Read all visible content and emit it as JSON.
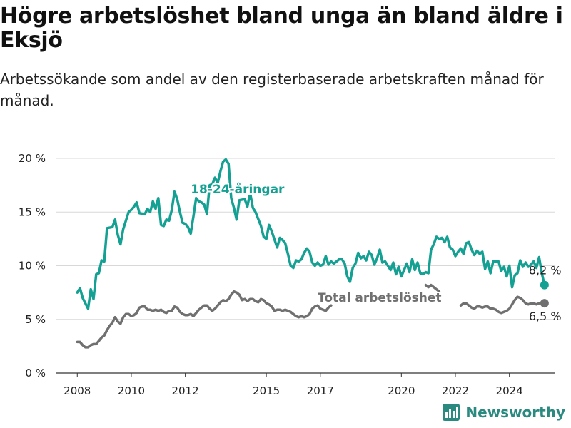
{
  "title": "Högre arbetslöshet bland unga än bland äldre i Eksjö",
  "subtitle": "Arbetssökande som andel av den registerbaserade arbetskraften månad för månad.",
  "brand": {
    "name": "Newsworthy",
    "color": "#2a8a80"
  },
  "chart_data": {
    "type": "line",
    "xlabel": "",
    "ylabel": "",
    "ylim": [
      0,
      20
    ],
    "y_ticks": [
      0,
      5,
      10,
      15,
      20
    ],
    "y_tick_labels": [
      "0 %",
      "5 %",
      "10 %",
      "15 %",
      "20 %"
    ],
    "x_ticks": [
      2008,
      2010,
      2012,
      2015,
      2017,
      2020,
      2022,
      2024
    ],
    "x_tick_labels": [
      "2008",
      "2010",
      "2012",
      "2015",
      "2017",
      "2020",
      "2022",
      "2024"
    ],
    "xlim": [
      2007.2,
      2025.7
    ],
    "grid": "horizontal",
    "series": [
      {
        "name": "18-24-åringar",
        "color": "#14a092",
        "end_label": "8,2 %",
        "end_value": 8.2,
        "points": [
          [
            2008.0,
            7.5
          ],
          [
            2008.1,
            7.9
          ],
          [
            2008.2,
            7.0
          ],
          [
            2008.4,
            6.0
          ],
          [
            2008.5,
            7.8
          ],
          [
            2008.6,
            6.9
          ],
          [
            2008.7,
            9.2
          ],
          [
            2008.8,
            9.3
          ],
          [
            2008.9,
            10.5
          ],
          [
            2009.0,
            10.4
          ],
          [
            2009.1,
            13.5
          ],
          [
            2009.3,
            13.6
          ],
          [
            2009.4,
            14.3
          ],
          [
            2009.5,
            12.9
          ],
          [
            2009.6,
            12.0
          ],
          [
            2009.7,
            13.4
          ],
          [
            2009.9,
            15.0
          ],
          [
            2010.0,
            15.2
          ],
          [
            2010.1,
            15.5
          ],
          [
            2010.2,
            15.9
          ],
          [
            2010.3,
            14.9
          ],
          [
            2010.5,
            14.8
          ],
          [
            2010.6,
            15.3
          ],
          [
            2010.7,
            15.0
          ],
          [
            2010.8,
            16.0
          ],
          [
            2010.9,
            15.3
          ],
          [
            2011.0,
            16.3
          ],
          [
            2011.1,
            13.8
          ],
          [
            2011.2,
            13.7
          ],
          [
            2011.3,
            14.3
          ],
          [
            2011.4,
            14.2
          ],
          [
            2011.5,
            15.2
          ],
          [
            2011.6,
            16.9
          ],
          [
            2011.7,
            16.2
          ],
          [
            2011.8,
            15.0
          ],
          [
            2011.9,
            14.0
          ],
          [
            2012.0,
            13.9
          ],
          [
            2012.1,
            13.6
          ],
          [
            2012.2,
            13.0
          ],
          [
            2012.3,
            14.6
          ],
          [
            2012.4,
            16.3
          ],
          [
            2012.5,
            16.0
          ],
          [
            2012.6,
            15.9
          ],
          [
            2012.7,
            15.7
          ],
          [
            2012.8,
            14.8
          ],
          [
            2012.9,
            17.5
          ],
          [
            2013.0,
            17.6
          ],
          [
            2013.1,
            18.2
          ],
          [
            2013.2,
            17.7
          ],
          [
            2013.3,
            18.8
          ],
          [
            2013.4,
            19.7
          ],
          [
            2013.5,
            19.9
          ],
          [
            2013.6,
            19.5
          ],
          [
            2013.7,
            16.3
          ],
          [
            2013.8,
            15.4
          ],
          [
            2013.9,
            14.3
          ],
          [
            2014.0,
            16.1
          ],
          [
            2014.2,
            16.2
          ],
          [
            2014.3,
            15.5
          ],
          [
            2014.4,
            16.8
          ],
          [
            2014.5,
            15.4
          ],
          [
            2014.6,
            15.0
          ],
          [
            2014.8,
            13.7
          ],
          [
            2014.9,
            12.7
          ],
          [
            2015.0,
            12.5
          ],
          [
            2015.1,
            13.8
          ],
          [
            2015.2,
            13.2
          ],
          [
            2015.4,
            11.7
          ],
          [
            2015.5,
            12.6
          ],
          [
            2015.6,
            12.4
          ],
          [
            2015.7,
            12.1
          ],
          [
            2015.8,
            11.1
          ],
          [
            2015.9,
            10.0
          ],
          [
            2016.0,
            9.8
          ],
          [
            2016.1,
            10.5
          ],
          [
            2016.2,
            10.4
          ],
          [
            2016.3,
            10.6
          ],
          [
            2016.4,
            11.2
          ],
          [
            2016.5,
            11.6
          ],
          [
            2016.6,
            11.3
          ],
          [
            2016.7,
            10.3
          ],
          [
            2016.8,
            10.0
          ],
          [
            2016.9,
            10.3
          ],
          [
            2017.0,
            10.0
          ],
          [
            2017.1,
            10.1
          ],
          [
            2017.2,
            10.9
          ],
          [
            2017.3,
            10.1
          ],
          [
            2017.4,
            10.4
          ],
          [
            2017.5,
            10.2
          ],
          [
            2017.7,
            10.6
          ],
          [
            2017.8,
            10.6
          ],
          [
            2017.9,
            10.2
          ],
          [
            2018.0,
            9.0
          ],
          [
            2018.1,
            8.5
          ],
          [
            2018.2,
            9.8
          ],
          [
            2018.3,
            10.2
          ],
          [
            2018.4,
            11.2
          ],
          [
            2018.5,
            10.7
          ],
          [
            2018.6,
            10.9
          ],
          [
            2018.7,
            10.5
          ],
          [
            2018.8,
            11.3
          ],
          [
            2018.9,
            11.0
          ],
          [
            2019.0,
            10.1
          ],
          [
            2019.1,
            10.7
          ],
          [
            2019.2,
            11.5
          ],
          [
            2019.3,
            10.3
          ],
          [
            2019.4,
            10.4
          ],
          [
            2019.5,
            10.0
          ],
          [
            2019.6,
            9.6
          ],
          [
            2019.7,
            10.3
          ],
          [
            2019.8,
            9.2
          ],
          [
            2019.9,
            9.9
          ],
          [
            2020.0,
            9.0
          ],
          [
            2020.1,
            9.6
          ],
          [
            2020.2,
            10.2
          ],
          [
            2020.3,
            9.4
          ],
          [
            2020.4,
            10.6
          ],
          [
            2020.5,
            9.6
          ],
          [
            2020.6,
            10.3
          ],
          [
            2020.7,
            9.3
          ],
          [
            2020.8,
            9.2
          ],
          [
            2020.9,
            9.4
          ],
          [
            2021.0,
            9.3
          ],
          [
            2021.1,
            11.5
          ],
          [
            2021.2,
            12.0
          ],
          [
            2021.3,
            12.7
          ],
          [
            2021.4,
            12.5
          ],
          [
            2021.5,
            12.6
          ],
          [
            2021.6,
            12.2
          ],
          [
            2021.7,
            12.7
          ],
          [
            2021.8,
            11.7
          ],
          [
            2021.9,
            11.5
          ],
          [
            2022.0,
            10.9
          ],
          [
            2022.1,
            11.3
          ],
          [
            2022.2,
            11.6
          ],
          [
            2022.3,
            11.1
          ],
          [
            2022.4,
            12.1
          ],
          [
            2022.5,
            12.2
          ],
          [
            2022.6,
            11.5
          ],
          [
            2022.7,
            11.0
          ],
          [
            2022.8,
            11.4
          ],
          [
            2022.9,
            11.1
          ],
          [
            2023.0,
            11.3
          ],
          [
            2023.1,
            9.7
          ],
          [
            2023.2,
            10.4
          ],
          [
            2023.3,
            9.3
          ],
          [
            2023.4,
            10.4
          ],
          [
            2023.5,
            10.4
          ],
          [
            2023.6,
            10.4
          ],
          [
            2023.7,
            9.5
          ],
          [
            2023.8,
            9.9
          ],
          [
            2023.9,
            9.0
          ],
          [
            2024.0,
            10.0
          ],
          [
            2024.1,
            8.0
          ],
          [
            2024.2,
            9.1
          ],
          [
            2024.3,
            9.3
          ],
          [
            2024.4,
            10.5
          ],
          [
            2024.5,
            9.9
          ],
          [
            2024.6,
            10.3
          ],
          [
            2024.7,
            9.9
          ],
          [
            2024.8,
            10.1
          ],
          [
            2024.9,
            10.4
          ],
          [
            2025.0,
            9.8
          ],
          [
            2025.1,
            10.8
          ],
          [
            2025.2,
            9.3
          ],
          [
            2025.3,
            8.2
          ]
        ]
      },
      {
        "name": "Total arbetslöshet",
        "color": "#707070",
        "end_label": "6,5 %",
        "end_value": 6.5,
        "points": [
          [
            2008.0,
            2.9
          ],
          [
            2008.1,
            2.9
          ],
          [
            2008.2,
            2.6
          ],
          [
            2008.3,
            2.4
          ],
          [
            2008.4,
            2.4
          ],
          [
            2008.5,
            2.6
          ],
          [
            2008.6,
            2.7
          ],
          [
            2008.7,
            2.7
          ],
          [
            2008.8,
            3.0
          ],
          [
            2008.9,
            3.3
          ],
          [
            2009.0,
            3.5
          ],
          [
            2009.1,
            4.0
          ],
          [
            2009.2,
            4.4
          ],
          [
            2009.3,
            4.7
          ],
          [
            2009.4,
            5.2
          ],
          [
            2009.5,
            4.8
          ],
          [
            2009.6,
            4.6
          ],
          [
            2009.7,
            5.2
          ],
          [
            2009.8,
            5.5
          ],
          [
            2009.9,
            5.5
          ],
          [
            2010.0,
            5.3
          ],
          [
            2010.1,
            5.4
          ],
          [
            2010.2,
            5.6
          ],
          [
            2010.3,
            6.1
          ],
          [
            2010.4,
            6.2
          ],
          [
            2010.5,
            6.2
          ],
          [
            2010.6,
            5.9
          ],
          [
            2010.7,
            5.9
          ],
          [
            2010.8,
            5.8
          ],
          [
            2010.9,
            5.9
          ],
          [
            2011.0,
            5.8
          ],
          [
            2011.1,
            5.9
          ],
          [
            2011.2,
            5.7
          ],
          [
            2011.3,
            5.6
          ],
          [
            2011.4,
            5.8
          ],
          [
            2011.5,
            5.8
          ],
          [
            2011.6,
            6.2
          ],
          [
            2011.7,
            6.1
          ],
          [
            2011.8,
            5.7
          ],
          [
            2011.9,
            5.5
          ],
          [
            2012.0,
            5.4
          ],
          [
            2012.1,
            5.4
          ],
          [
            2012.2,
            5.5
          ],
          [
            2012.3,
            5.3
          ],
          [
            2012.4,
            5.6
          ],
          [
            2012.5,
            5.9
          ],
          [
            2012.6,
            6.1
          ],
          [
            2012.7,
            6.3
          ],
          [
            2012.8,
            6.3
          ],
          [
            2012.9,
            6.0
          ],
          [
            2013.0,
            5.8
          ],
          [
            2013.1,
            6.0
          ],
          [
            2013.2,
            6.3
          ],
          [
            2013.3,
            6.6
          ],
          [
            2013.4,
            6.8
          ],
          [
            2013.5,
            6.7
          ],
          [
            2013.6,
            6.9
          ],
          [
            2013.7,
            7.3
          ],
          [
            2013.8,
            7.6
          ],
          [
            2013.9,
            7.5
          ],
          [
            2014.0,
            7.3
          ],
          [
            2014.1,
            6.8
          ],
          [
            2014.2,
            6.9
          ],
          [
            2014.3,
            6.7
          ],
          [
            2014.4,
            6.9
          ],
          [
            2014.5,
            6.9
          ],
          [
            2014.6,
            6.7
          ],
          [
            2014.7,
            6.6
          ],
          [
            2014.8,
            6.9
          ],
          [
            2014.9,
            6.8
          ],
          [
            2015.0,
            6.5
          ],
          [
            2015.1,
            6.4
          ],
          [
            2015.2,
            6.2
          ],
          [
            2015.3,
            5.8
          ],
          [
            2015.4,
            5.9
          ],
          [
            2015.5,
            5.9
          ],
          [
            2015.6,
            5.8
          ],
          [
            2015.7,
            5.9
          ],
          [
            2015.8,
            5.8
          ],
          [
            2015.9,
            5.7
          ],
          [
            2016.0,
            5.5
          ],
          [
            2016.1,
            5.3
          ],
          [
            2016.2,
            5.2
          ],
          [
            2016.3,
            5.3
          ],
          [
            2016.4,
            5.2
          ],
          [
            2016.5,
            5.3
          ],
          [
            2016.6,
            5.5
          ],
          [
            2016.7,
            6.0
          ],
          [
            2016.8,
            6.2
          ],
          [
            2016.9,
            6.3
          ],
          [
            2017.0,
            6.0
          ],
          [
            2017.1,
            5.9
          ],
          [
            2017.2,
            5.8
          ],
          [
            2017.3,
            6.1
          ],
          [
            2017.4,
            6.3
          ],
          [
            2020.9,
            8.2
          ],
          [
            2021.0,
            8.0
          ],
          [
            2021.1,
            8.2
          ],
          [
            2021.2,
            8.0
          ],
          [
            2021.3,
            7.8
          ],
          [
            2021.4,
            7.6
          ],
          [
            2022.2,
            6.3
          ],
          [
            2022.3,
            6.5
          ],
          [
            2022.4,
            6.5
          ],
          [
            2022.5,
            6.3
          ],
          [
            2022.6,
            6.1
          ],
          [
            2022.7,
            6.0
          ],
          [
            2022.8,
            6.2
          ],
          [
            2022.9,
            6.2
          ],
          [
            2023.0,
            6.1
          ],
          [
            2023.1,
            6.2
          ],
          [
            2023.2,
            6.2
          ],
          [
            2023.3,
            6.0
          ],
          [
            2023.4,
            6.0
          ],
          [
            2023.5,
            5.9
          ],
          [
            2023.6,
            5.7
          ],
          [
            2023.7,
            5.6
          ],
          [
            2023.8,
            5.7
          ],
          [
            2023.9,
            5.8
          ],
          [
            2024.0,
            6.0
          ],
          [
            2024.1,
            6.4
          ],
          [
            2024.2,
            6.8
          ],
          [
            2024.3,
            7.1
          ],
          [
            2024.4,
            7.0
          ],
          [
            2024.5,
            6.8
          ],
          [
            2024.6,
            6.5
          ],
          [
            2024.7,
            6.4
          ],
          [
            2024.8,
            6.5
          ],
          [
            2024.9,
            6.5
          ],
          [
            2025.0,
            6.4
          ],
          [
            2025.1,
            6.5
          ],
          [
            2025.2,
            6.6
          ],
          [
            2025.3,
            6.5
          ]
        ]
      }
    ]
  }
}
